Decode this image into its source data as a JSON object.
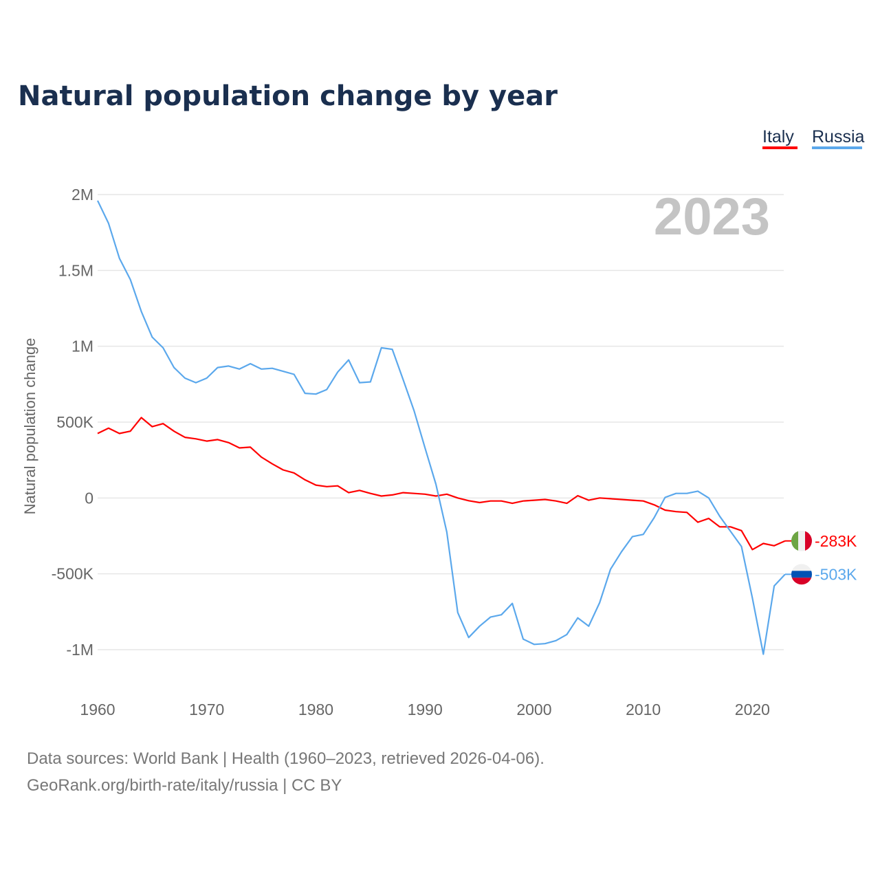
{
  "chart_data": {
    "type": "line",
    "title": "Natural population change by year",
    "xlabel": "",
    "ylabel": "Natural population change",
    "xlim": [
      1960,
      2023
    ],
    "ylim": [
      -1000000,
      2000000
    ],
    "x_ticks": [
      1960,
      1970,
      1980,
      1990,
      2000,
      2010,
      2020
    ],
    "x_tick_labels": [
      "1960",
      "1970",
      "1980",
      "1990",
      "2000",
      "2010",
      "2020"
    ],
    "y_ticks": [
      2000000,
      1500000,
      1000000,
      500000,
      0,
      -500000,
      -1000000
    ],
    "y_tick_labels": [
      "2M",
      "1.5M",
      "1M",
      "500K",
      "0",
      "-500K",
      "-1M"
    ],
    "grid": true,
    "legend_position": "top-right",
    "year_label": "2023",
    "start_year": 1960,
    "series": [
      {
        "name": "Italy",
        "color": "#ff0000",
        "end_label": "-283K",
        "flag": "italy-flag",
        "values": [
          425000,
          460000,
          425000,
          440000,
          530000,
          470000,
          490000,
          440000,
          400000,
          390000,
          375000,
          385000,
          365000,
          330000,
          335000,
          270000,
          225000,
          185000,
          165000,
          120000,
          85000,
          75000,
          80000,
          35000,
          50000,
          30000,
          13000,
          20000,
          35000,
          30000,
          25000,
          13000,
          25000,
          0,
          -18000,
          -30000,
          -20000,
          -20000,
          -35000,
          -20000,
          -15000,
          -10000,
          -20000,
          -35000,
          15000,
          -15000,
          0,
          -5000,
          -10000,
          -15000,
          -20000,
          -45000,
          -80000,
          -90000,
          -95000,
          -160000,
          -135000,
          -190000,
          -190000,
          -215000,
          -340000,
          -300000,
          -315000,
          -283000
        ]
      },
      {
        "name": "Russia",
        "color": "#5ba8ec",
        "end_label": "-503K",
        "flag": "russia-flag",
        "values": [
          1960000,
          1810000,
          1580000,
          1440000,
          1230000,
          1060000,
          990000,
          860000,
          790000,
          760000,
          790000,
          860000,
          870000,
          850000,
          885000,
          850000,
          855000,
          835000,
          815000,
          690000,
          685000,
          715000,
          830000,
          910000,
          760000,
          765000,
          990000,
          980000,
          780000,
          575000,
          330000,
          90000,
          -225000,
          -755000,
          -920000,
          -845000,
          -785000,
          -770000,
          -695000,
          -930000,
          -965000,
          -960000,
          -940000,
          -900000,
          -790000,
          -845000,
          -690000,
          -470000,
          -355000,
          -255000,
          -240000,
          -130000,
          4000,
          30000,
          30000,
          45000,
          0,
          -120000,
          -220000,
          -320000,
          -660000,
          -1030000,
          -580000,
          -503000
        ]
      }
    ]
  },
  "footer": {
    "line1": "Data sources: World Bank | Health (1960–2023, retrieved 2026-04-06).",
    "line2": "GeoRank.org/birth-rate/italy/russia | CC BY"
  }
}
